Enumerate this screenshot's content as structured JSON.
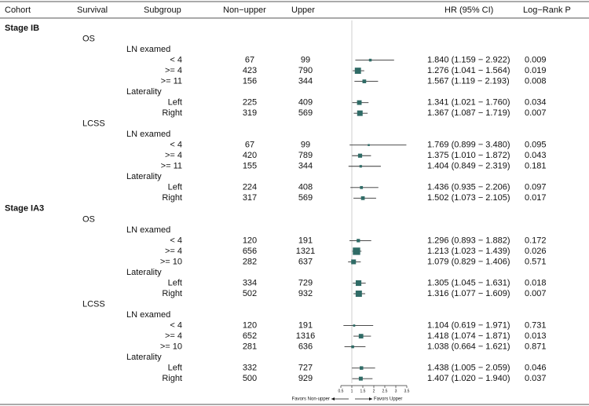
{
  "chart_data": {
    "type": "forest",
    "columns": [
      "Cohort",
      "Survival",
      "Subgroup",
      "Non−upper",
      "Upper",
      "HR (95% CI)",
      "Log−Rank P"
    ],
    "xlim": [
      0.5,
      3.5
    ],
    "xticks": [
      0.5,
      1,
      1.5,
      2,
      2.5,
      3,
      3.5
    ],
    "reference": 1,
    "left_label": "Favors Non-upper",
    "right_label": "Favors Upper",
    "color": "#2f6b66",
    "stages": [
      {
        "name": "Stage IB",
        "endpoints": [
          {
            "name": "OS",
            "groups": [
              {
                "name": "LN examed",
                "rows": [
                  {
                    "label": "< 4",
                    "non_upper": 67,
                    "upper": 99,
                    "hr": [
                      1.84,
                      1.159,
                      2.922
                    ],
                    "hr_label": "1.840 (1.159 − 2.922)",
                    "p": 0.009
                  },
                  {
                    "label": ">= 4",
                    "non_upper": 423,
                    "upper": 790,
                    "hr": [
                      1.276,
                      1.041,
                      1.564
                    ],
                    "hr_label": "1.276 (1.041 − 1.564)",
                    "p": 0.019
                  },
                  {
                    "label": ">= 11",
                    "non_upper": 156,
                    "upper": 344,
                    "hr": [
                      1.567,
                      1.119,
                      2.193
                    ],
                    "hr_label": "1.567 (1.119 − 2.193)",
                    "p": 0.008
                  }
                ]
              },
              {
                "name": "Laterality",
                "rows": [
                  {
                    "label": "Left",
                    "non_upper": 225,
                    "upper": 409,
                    "hr": [
                      1.341,
                      1.021,
                      1.76
                    ],
                    "hr_label": "1.341 (1.021 − 1.760)",
                    "p": 0.034
                  },
                  {
                    "label": "Right",
                    "non_upper": 319,
                    "upper": 569,
                    "hr": [
                      1.367,
                      1.087,
                      1.719
                    ],
                    "hr_label": "1.367 (1.087 − 1.719)",
                    "p": 0.007
                  }
                ]
              }
            ]
          },
          {
            "name": "LCSS",
            "groups": [
              {
                "name": "LN examed",
                "rows": [
                  {
                    "label": "< 4",
                    "non_upper": 67,
                    "upper": 99,
                    "hr": [
                      1.769,
                      0.899,
                      3.48
                    ],
                    "hr_label": "1.769 (0.899 − 3.480)",
                    "p": 0.095
                  },
                  {
                    "label": ">= 4",
                    "non_upper": 420,
                    "upper": 789,
                    "hr": [
                      1.375,
                      1.01,
                      1.872
                    ],
                    "hr_label": "1.375 (1.010 − 1.872)",
                    "p": 0.043
                  },
                  {
                    "label": ">= 11",
                    "non_upper": 155,
                    "upper": 344,
                    "hr": [
                      1.404,
                      0.849,
                      2.319
                    ],
                    "hr_label": "1.404 (0.849 − 2.319)",
                    "p": 0.181
                  }
                ]
              },
              {
                "name": "Laterality",
                "rows": [
                  {
                    "label": "Left",
                    "non_upper": 224,
                    "upper": 408,
                    "hr": [
                      1.436,
                      0.935,
                      2.206
                    ],
                    "hr_label": "1.436 (0.935 − 2.206)",
                    "p": 0.097
                  },
                  {
                    "label": "Right",
                    "non_upper": 317,
                    "upper": 569,
                    "hr": [
                      1.502,
                      1.073,
                      2.105
                    ],
                    "hr_label": "1.502 (1.073 − 2.105)",
                    "p": 0.017
                  }
                ]
              }
            ]
          }
        ]
      },
      {
        "name": "Stage IA3",
        "endpoints": [
          {
            "name": "OS",
            "groups": [
              {
                "name": "LN examed",
                "rows": [
                  {
                    "label": "< 4",
                    "non_upper": 120,
                    "upper": 191,
                    "hr": [
                      1.296,
                      0.893,
                      1.882
                    ],
                    "hr_label": "1.296 (0.893 − 1.882)",
                    "p": 0.172
                  },
                  {
                    "label": ">= 4",
                    "non_upper": 656,
                    "upper": 1321,
                    "hr": [
                      1.213,
                      1.023,
                      1.439
                    ],
                    "hr_label": "1.213 (1.023 − 1.439)",
                    "p": 0.026
                  },
                  {
                    "label": ">= 10",
                    "non_upper": 282,
                    "upper": 637,
                    "hr": [
                      1.079,
                      0.829,
                      1.406
                    ],
                    "hr_label": "1.079 (0.829 − 1.406)",
                    "p": 0.571
                  }
                ]
              },
              {
                "name": "Laterality",
                "rows": [
                  {
                    "label": "Left",
                    "non_upper": 334,
                    "upper": 729,
                    "hr": [
                      1.305,
                      1.045,
                      1.631
                    ],
                    "hr_label": "1.305 (1.045 − 1.631)",
                    "p": 0.018
                  },
                  {
                    "label": "Right",
                    "non_upper": 502,
                    "upper": 932,
                    "hr": [
                      1.316,
                      1.077,
                      1.609
                    ],
                    "hr_label": "1.316 (1.077 − 1.609)",
                    "p": 0.007
                  }
                ]
              }
            ]
          },
          {
            "name": "LCSS",
            "groups": [
              {
                "name": "LN examed",
                "rows": [
                  {
                    "label": "< 4",
                    "non_upper": 120,
                    "upper": 191,
                    "hr": [
                      1.104,
                      0.619,
                      1.971
                    ],
                    "hr_label": "1.104 (0.619 − 1.971)",
                    "p": 0.731
                  },
                  {
                    "label": ">= 4",
                    "non_upper": 652,
                    "upper": 1316,
                    "hr": [
                      1.418,
                      1.074,
                      1.871
                    ],
                    "hr_label": "1.418 (1.074 − 1.871)",
                    "p": 0.013
                  },
                  {
                    "label": ">= 10",
                    "non_upper": 281,
                    "upper": 636,
                    "hr": [
                      1.038,
                      0.664,
                      1.621
                    ],
                    "hr_label": "1.038 (0.664 − 1.621)",
                    "p": 0.871
                  }
                ]
              },
              {
                "name": "Laterality",
                "rows": [
                  {
                    "label": "Left",
                    "non_upper": 332,
                    "upper": 727,
                    "hr": [
                      1.438,
                      1.005,
                      2.059
                    ],
                    "hr_label": "1.438 (1.005 − 2.059)",
                    "p": 0.046
                  },
                  {
                    "label": "Right",
                    "non_upper": 500,
                    "upper": 929,
                    "hr": [
                      1.407,
                      1.02,
                      1.94
                    ],
                    "hr_label": "1.407 (1.020 − 1.940)",
                    "p": 0.037
                  }
                ]
              }
            ]
          }
        ]
      }
    ]
  }
}
